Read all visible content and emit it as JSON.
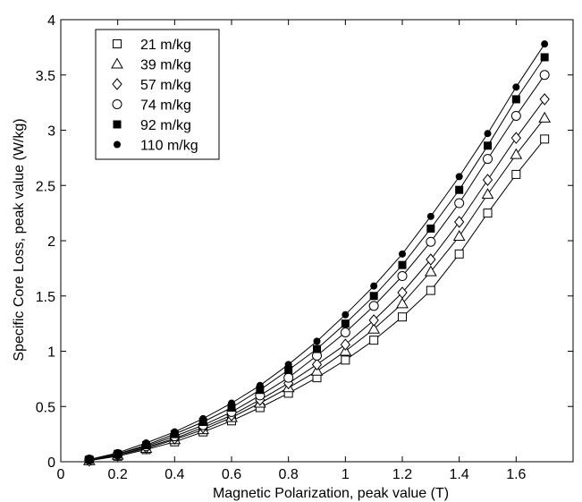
{
  "chart_data": {
    "type": "scatter",
    "xlabel": "Magnetic Polarization, peak value (T)",
    "ylabel": "Specific Core Loss, peak value (W/kg)",
    "xlim": [
      0,
      1.8
    ],
    "ylim": [
      0,
      4
    ],
    "xticks": [
      0,
      0.2,
      0.4,
      0.6,
      0.8,
      1,
      1.2,
      1.4,
      1.6
    ],
    "yticks": [
      0,
      0.5,
      1,
      1.5,
      2,
      2.5,
      3,
      3.5,
      4
    ],
    "grid": false,
    "legend_position": "top-left",
    "fit_lines": true,
    "x": [
      0.1,
      0.2,
      0.3,
      0.4,
      0.5,
      0.6,
      0.7,
      0.8,
      0.9,
      1.0,
      1.1,
      1.2,
      1.3,
      1.4,
      1.5,
      1.6,
      1.7
    ],
    "series": [
      {
        "name": "21 m/kg",
        "marker": "square-open",
        "values": [
          0.01,
          0.05,
          0.11,
          0.18,
          0.27,
          0.37,
          0.49,
          0.62,
          0.76,
          0.92,
          1.1,
          1.31,
          1.55,
          1.88,
          2.25,
          2.6,
          2.92
        ]
      },
      {
        "name": "39 m/kg",
        "marker": "triangle-open",
        "values": [
          0.01,
          0.06,
          0.12,
          0.2,
          0.29,
          0.4,
          0.53,
          0.67,
          0.82,
          1.0,
          1.2,
          1.43,
          1.72,
          2.04,
          2.42,
          2.78,
          3.11
        ]
      },
      {
        "name": "57 m/kg",
        "marker": "diamond-open",
        "values": [
          0.01,
          0.06,
          0.13,
          0.21,
          0.31,
          0.42,
          0.56,
          0.71,
          0.88,
          1.06,
          1.28,
          1.53,
          1.83,
          2.17,
          2.55,
          2.93,
          3.28
        ]
      },
      {
        "name": "74 m/kg",
        "marker": "circle-open",
        "values": [
          0.02,
          0.07,
          0.14,
          0.23,
          0.33,
          0.45,
          0.6,
          0.76,
          0.96,
          1.17,
          1.41,
          1.68,
          1.99,
          2.34,
          2.74,
          3.13,
          3.5
        ]
      },
      {
        "name": "92 m/kg",
        "marker": "square-filled",
        "values": [
          0.02,
          0.07,
          0.15,
          0.25,
          0.36,
          0.49,
          0.65,
          0.83,
          1.02,
          1.25,
          1.5,
          1.78,
          2.11,
          2.46,
          2.86,
          3.28,
          3.66
        ]
      },
      {
        "name": "110 m/kg",
        "marker": "circle-filled",
        "values": [
          0.02,
          0.08,
          0.17,
          0.27,
          0.39,
          0.53,
          0.69,
          0.88,
          1.09,
          1.33,
          1.59,
          1.88,
          2.22,
          2.58,
          2.97,
          3.39,
          3.78
        ]
      }
    ]
  }
}
